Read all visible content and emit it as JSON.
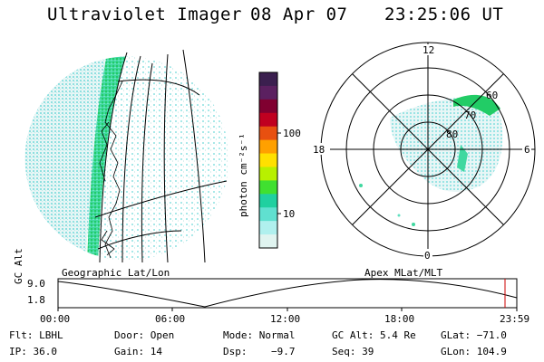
{
  "header": {
    "title": "Ultraviolet Imager",
    "date": "08 Apr 07",
    "time": "23:25:06 UT"
  },
  "panels": {
    "geographic_label": "Geographic Lat/Lon",
    "apex_label": "Apex MLat/MLT"
  },
  "colorbar": {
    "unit": "photon cm⁻²s⁻¹",
    "ticks": [
      "100",
      "10"
    ],
    "colors": [
      "#3b1f4f",
      "#5b2060",
      "#800030",
      "#c00020",
      "#e85010",
      "#ffa000",
      "#ffe000",
      "#b8f000",
      "#40e030",
      "#20d0a0",
      "#60e0d0",
      "#b0f0ee",
      "#e0f4f0"
    ]
  },
  "polar": {
    "mlt_labels": {
      "top": "12",
      "left": "18",
      "right": "6",
      "bottom": "0"
    },
    "lat_labels": [
      "60",
      "70",
      "80"
    ]
  },
  "altitude_plot": {
    "axis_label": "GC Alt",
    "y_ticks": [
      "9.0",
      "1.8"
    ],
    "time_labels": [
      "00:00",
      "06:00",
      "12:00",
      "18:00",
      "23:59"
    ]
  },
  "info": {
    "filter": "Flt: LBHL",
    "door": "Door: Open",
    "mode": "Mode: Normal",
    "gc_alt": "GC Alt: 5.4 Re",
    "glat": "GLat: −71.0",
    "ip": "IP: 36.0",
    "gain": "Gain: 14",
    "dsp": "Dsp:    −9.7",
    "seq": "Seq: 39",
    "glon": "GLon: 104.9"
  },
  "colors": {
    "auroral_green": "#22cc66",
    "cyan_noise": "#8fe0e0",
    "marker_red": "#cc0000"
  }
}
